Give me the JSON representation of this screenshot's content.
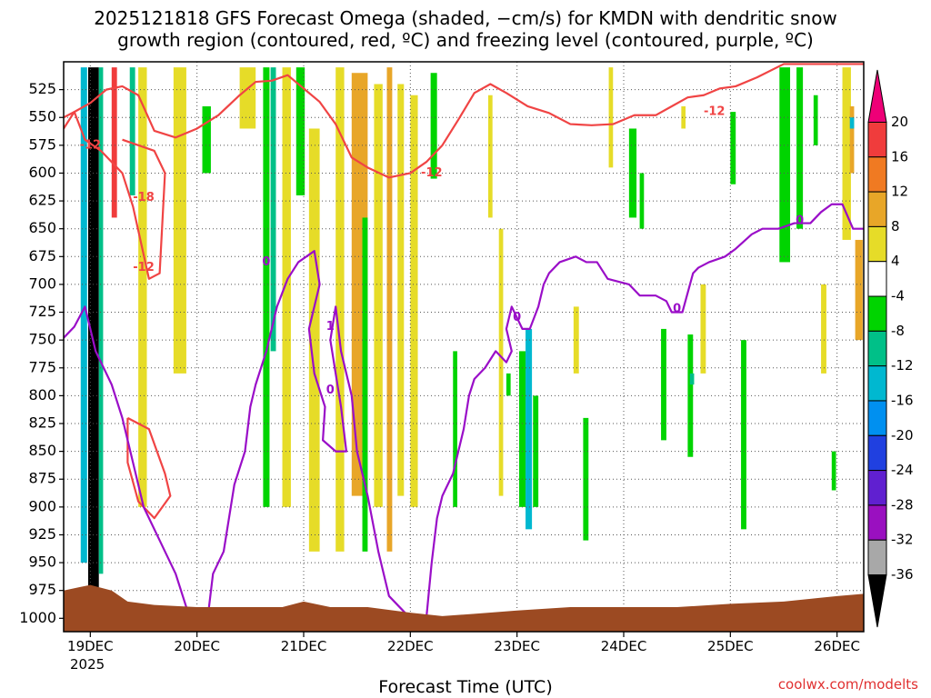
{
  "title_line1": "2025121818 GFS Forecast Omega (shaded, −cm/s) for KMDN with dendritic snow",
  "title_line2": "growth region (contoured, red, ºC) and freezing level (contoured, purple, ºC)",
  "xlabel": "Forecast Time (UTC)",
  "year_label": "2025",
  "credit": "coolwx.com/modelts",
  "colors": {
    "dgz": "#f04444",
    "freezing": "#9a0ec8",
    "terrain": "#9c4a22",
    "grid": "#555555"
  },
  "chart_data": {
    "type": "heatmap",
    "title": "2025121818 GFS Forecast Omega (shaded, −cm/s) for KMDN with dendritic snow growth region (contoured, red, ºC) and freezing level (contoured, purple, ºC)",
    "xlabel": "Forecast Time (UTC)",
    "ylabel": "",
    "y_axis": {
      "reversed": true,
      "range": [
        1012,
        500
      ],
      "ticks": [
        525,
        550,
        575,
        600,
        625,
        650,
        675,
        700,
        725,
        750,
        775,
        800,
        825,
        850,
        875,
        900,
        925,
        950,
        975,
        1000
      ]
    },
    "x_axis": {
      "ticks": [
        "19DEC",
        "20DEC",
        "21DEC",
        "22DEC",
        "23DEC",
        "24DEC",
        "25DEC",
        "26DEC"
      ],
      "range": [
        -0.25,
        7.25
      ],
      "year": "2025"
    },
    "grid": true,
    "colorbar": {
      "labels": [
        "20",
        "16",
        "12",
        "8",
        "4",
        "-4",
        "-8",
        "-12",
        "-16",
        "-20",
        "-24",
        "-28",
        "-32",
        "-36"
      ],
      "bins": [
        {
          "range": [
            20,
            99
          ],
          "color": "#ee0077"
        },
        {
          "range": [
            16,
            20
          ],
          "color": "#f03c3c"
        },
        {
          "range": [
            12,
            16
          ],
          "color": "#f07a22"
        },
        {
          "range": [
            8,
            12
          ],
          "color": "#e8a628"
        },
        {
          "range": [
            4,
            8
          ],
          "color": "#e6dc28"
        },
        {
          "range": [
            -4,
            4
          ],
          "color": "#ffffff"
        },
        {
          "range": [
            -8,
            -4
          ],
          "color": "#00d400"
        },
        {
          "range": [
            -12,
            -8
          ],
          "color": "#00c088"
        },
        {
          "range": [
            -16,
            -12
          ],
          "color": "#00b8d0"
        },
        {
          "range": [
            -20,
            -16
          ],
          "color": "#0090f0"
        },
        {
          "range": [
            -24,
            -20
          ],
          "color": "#2040e0"
        },
        {
          "range": [
            -28,
            -24
          ],
          "color": "#6020d0"
        },
        {
          "range": [
            -32,
            -28
          ],
          "color": "#9a10c0"
        },
        {
          "range": [
            -36,
            -32
          ],
          "color": "#a8a8a8"
        },
        {
          "range": [
            -99,
            -36
          ],
          "color": "#000000"
        }
      ]
    },
    "omega_patches": [
      {
        "t": -0.02,
        "dt": 0.1,
        "p1": 505,
        "p2": 985,
        "v": -40
      },
      {
        "t": -0.09,
        "dt": 0.06,
        "p1": 505,
        "p2": 950,
        "v": -14
      },
      {
        "t": 0.08,
        "dt": 0.04,
        "p1": 505,
        "p2": 960,
        "v": -10
      },
      {
        "t": 0.2,
        "dt": 0.05,
        "p1": 505,
        "p2": 640,
        "v": 18
      },
      {
        "t": 0.37,
        "dt": 0.05,
        "p1": 505,
        "p2": 620,
        "v": -12
      },
      {
        "t": 0.45,
        "dt": 0.08,
        "p1": 505,
        "p2": 900,
        "v": 6
      },
      {
        "t": 0.78,
        "dt": 0.12,
        "p1": 505,
        "p2": 780,
        "v": 6
      },
      {
        "t": 1.05,
        "dt": 0.08,
        "p1": 540,
        "p2": 600,
        "v": -6
      },
      {
        "t": 1.4,
        "dt": 0.15,
        "p1": 505,
        "p2": 560,
        "v": 5
      },
      {
        "t": 1.62,
        "dt": 0.06,
        "p1": 505,
        "p2": 900,
        "v": -6
      },
      {
        "t": 1.69,
        "dt": 0.05,
        "p1": 505,
        "p2": 760,
        "v": -10
      },
      {
        "t": 1.8,
        "dt": 0.08,
        "p1": 505,
        "p2": 900,
        "v": 5
      },
      {
        "t": 1.93,
        "dt": 0.08,
        "p1": 505,
        "p2": 620,
        "v": -6
      },
      {
        "t": 2.05,
        "dt": 0.1,
        "p1": 560,
        "p2": 940,
        "v": 5
      },
      {
        "t": 2.3,
        "dt": 0.08,
        "p1": 505,
        "p2": 940,
        "v": 5
      },
      {
        "t": 2.45,
        "dt": 0.15,
        "p1": 510,
        "p2": 890,
        "v": 8
      },
      {
        "t": 2.66,
        "dt": 0.08,
        "p1": 520,
        "p2": 900,
        "v": 5
      },
      {
        "t": 2.78,
        "dt": 0.05,
        "p1": 505,
        "p2": 940,
        "v": 9
      },
      {
        "t": 2.88,
        "dt": 0.06,
        "p1": 520,
        "p2": 890,
        "v": 6
      },
      {
        "t": 2.55,
        "dt": 0.05,
        "p1": 640,
        "p2": 940,
        "v": -6
      },
      {
        "t": 3.0,
        "dt": 0.07,
        "p1": 530,
        "p2": 900,
        "v": 5
      },
      {
        "t": 3.19,
        "dt": 0.06,
        "p1": 510,
        "p2": 605,
        "v": -6
      },
      {
        "t": 3.4,
        "dt": 0.04,
        "p1": 760,
        "p2": 900,
        "v": -6
      },
      {
        "t": 3.73,
        "dt": 0.04,
        "p1": 530,
        "p2": 640,
        "v": 5
      },
      {
        "t": 3.83,
        "dt": 0.04,
        "p1": 650,
        "p2": 890,
        "v": 5
      },
      {
        "t": 3.9,
        "dt": 0.04,
        "p1": 780,
        "p2": 800,
        "v": -6
      },
      {
        "t": 4.02,
        "dt": 0.06,
        "p1": 760,
        "p2": 900,
        "v": -8
      },
      {
        "t": 4.08,
        "dt": 0.06,
        "p1": 740,
        "p2": 920,
        "v": -13
      },
      {
        "t": 4.15,
        "dt": 0.05,
        "p1": 800,
        "p2": 900,
        "v": -6
      },
      {
        "t": 4.53,
        "dt": 0.05,
        "p1": 720,
        "p2": 780,
        "v": 5
      },
      {
        "t": 4.62,
        "dt": 0.05,
        "p1": 820,
        "p2": 930,
        "v": -6
      },
      {
        "t": 4.86,
        "dt": 0.04,
        "p1": 505,
        "p2": 595,
        "v": 5
      },
      {
        "t": 5.05,
        "dt": 0.07,
        "p1": 560,
        "p2": 640,
        "v": -6
      },
      {
        "t": 5.15,
        "dt": 0.04,
        "p1": 600,
        "p2": 650,
        "v": -6
      },
      {
        "t": 5.35,
        "dt": 0.05,
        "p1": 740,
        "p2": 840,
        "v": -6
      },
      {
        "t": 5.54,
        "dt": 0.04,
        "p1": 540,
        "p2": 560,
        "v": 6
      },
      {
        "t": 5.6,
        "dt": 0.05,
        "p1": 745,
        "p2": 855,
        "v": -7
      },
      {
        "t": 5.62,
        "dt": 0.04,
        "p1": 780,
        "p2": 790,
        "v": -12
      },
      {
        "t": 5.72,
        "dt": 0.05,
        "p1": 700,
        "p2": 780,
        "v": 5
      },
      {
        "t": 6.0,
        "dt": 0.05,
        "p1": 545,
        "p2": 610,
        "v": -6
      },
      {
        "t": 6.1,
        "dt": 0.05,
        "p1": 750,
        "p2": 920,
        "v": -6
      },
      {
        "t": 6.46,
        "dt": 0.1,
        "p1": 505,
        "p2": 680,
        "v": -6
      },
      {
        "t": 6.62,
        "dt": 0.06,
        "p1": 505,
        "p2": 650,
        "v": -6
      },
      {
        "t": 6.78,
        "dt": 0.04,
        "p1": 530,
        "p2": 575,
        "v": -6
      },
      {
        "t": 6.85,
        "dt": 0.05,
        "p1": 700,
        "p2": 780,
        "v": 5
      },
      {
        "t": 6.95,
        "dt": 0.04,
        "p1": 850,
        "p2": 885,
        "v": -6
      },
      {
        "t": 7.05,
        "dt": 0.08,
        "p1": 505,
        "p2": 660,
        "v": 6
      },
      {
        "t": 7.12,
        "dt": 0.04,
        "p1": 540,
        "p2": 600,
        "v": 9
      },
      {
        "t": 7.12,
        "dt": 0.04,
        "p1": 550,
        "p2": 560,
        "v": -13
      },
      {
        "t": 7.17,
        "dt": 0.07,
        "p1": 660,
        "p2": 750,
        "v": 9
      }
    ],
    "dgz_upper_isotherm_c": -12,
    "dgz_upper_isotherm": [
      [
        -0.25,
        560
      ],
      [
        -0.15,
        545
      ],
      [
        0.0,
        537
      ],
      [
        0.15,
        525
      ],
      [
        0.3,
        522
      ],
      [
        0.45,
        530
      ],
      [
        0.6,
        562
      ],
      [
        0.8,
        568
      ],
      [
        1.0,
        560
      ],
      [
        1.2,
        548
      ],
      [
        1.4,
        530
      ],
      [
        1.55,
        518
      ],
      [
        1.7,
        517
      ],
      [
        1.85,
        512
      ],
      [
        2.0,
        524
      ],
      [
        2.15,
        536
      ],
      [
        2.3,
        556
      ],
      [
        2.45,
        586
      ],
      [
        2.6,
        595
      ],
      [
        2.8,
        604
      ],
      [
        3.0,
        600
      ],
      [
        3.15,
        590
      ],
      [
        3.3,
        575
      ],
      [
        3.45,
        552
      ],
      [
        3.6,
        528
      ],
      [
        3.75,
        520
      ],
      [
        3.9,
        528
      ],
      [
        4.1,
        540
      ],
      [
        4.3,
        546
      ],
      [
        4.5,
        556
      ],
      [
        4.7,
        557
      ],
      [
        4.9,
        556
      ],
      [
        5.1,
        548
      ],
      [
        5.3,
        548
      ],
      [
        5.45,
        540
      ],
      [
        5.6,
        532
      ],
      [
        5.75,
        530
      ],
      [
        5.9,
        524
      ],
      [
        6.05,
        522
      ],
      [
        6.25,
        514
      ],
      [
        6.5,
        502
      ],
      [
        7.25,
        502
      ]
    ],
    "dgz_lower_isotherm_c": -18,
    "dgz_lower_isotherm": [
      [
        -0.25,
        550
      ],
      [
        -0.15,
        545
      ],
      [
        -0.05,
        570
      ],
      [
        0.1,
        580
      ],
      [
        0.3,
        600
      ],
      [
        0.4,
        630
      ],
      [
        0.55,
        695
      ],
      [
        0.65,
        690
      ],
      [
        0.7,
        600
      ],
      [
        0.6,
        580
      ],
      [
        0.45,
        575
      ],
      [
        0.3,
        570
      ]
    ],
    "dgz_closed_contour": [
      [
        0.35,
        820
      ],
      [
        0.55,
        830
      ],
      [
        0.7,
        870
      ],
      [
        0.75,
        890
      ],
      [
        0.6,
        910
      ],
      [
        0.45,
        895
      ],
      [
        0.35,
        860
      ],
      [
        0.35,
        820
      ]
    ],
    "freezing_level_0c": [
      [
        -0.25,
        748
      ],
      [
        -0.15,
        738
      ],
      [
        -0.05,
        720
      ],
      [
        0.0,
        740
      ],
      [
        0.05,
        760
      ],
      [
        0.2,
        790
      ],
      [
        0.3,
        820
      ],
      [
        0.4,
        860
      ],
      [
        0.5,
        900
      ],
      [
        0.65,
        930
      ],
      [
        0.8,
        960
      ],
      [
        0.9,
        990
      ],
      [
        1.05,
        1000
      ]
    ],
    "freezing_level_0c_b": [
      [
        1.1,
        1000
      ],
      [
        1.15,
        960
      ],
      [
        1.25,
        940
      ],
      [
        1.35,
        880
      ],
      [
        1.45,
        850
      ],
      [
        1.5,
        810
      ],
      [
        1.55,
        790
      ],
      [
        1.65,
        760
      ],
      [
        1.75,
        720
      ],
      [
        1.85,
        695
      ],
      [
        1.95,
        680
      ],
      [
        2.1,
        670
      ],
      [
        2.15,
        700
      ],
      [
        2.05,
        740
      ],
      [
        2.1,
        780
      ],
      [
        2.2,
        810
      ],
      [
        2.18,
        840
      ],
      [
        2.3,
        850
      ],
      [
        2.4,
        850
      ],
      [
        2.35,
        810
      ],
      [
        2.3,
        780
      ],
      [
        2.25,
        750
      ],
      [
        2.3,
        720
      ],
      [
        2.35,
        760
      ],
      [
        2.45,
        800
      ],
      [
        2.5,
        850
      ],
      [
        2.6,
        890
      ],
      [
        2.7,
        940
      ],
      [
        2.8,
        980
      ],
      [
        2.9,
        990
      ],
      [
        3.0,
        1000
      ]
    ],
    "freezing_level_0c_c": [
      [
        3.15,
        1000
      ],
      [
        3.2,
        950
      ],
      [
        3.25,
        910
      ],
      [
        3.3,
        890
      ],
      [
        3.4,
        870
      ],
      [
        3.5,
        830
      ],
      [
        3.55,
        800
      ],
      [
        3.6,
        785
      ],
      [
        3.7,
        775
      ],
      [
        3.8,
        760
      ],
      [
        3.9,
        770
      ],
      [
        3.95,
        760
      ],
      [
        3.9,
        740
      ],
      [
        3.95,
        720
      ],
      [
        4.05,
        740
      ],
      [
        4.12,
        740
      ],
      [
        4.2,
        720
      ],
      [
        4.25,
        700
      ],
      [
        4.3,
        690
      ],
      [
        4.4,
        680
      ],
      [
        4.55,
        675
      ],
      [
        4.65,
        680
      ],
      [
        4.75,
        680
      ],
      [
        4.85,
        695
      ],
      [
        5.05,
        700
      ],
      [
        5.15,
        710
      ],
      [
        5.3,
        710
      ],
      [
        5.4,
        715
      ],
      [
        5.45,
        725
      ],
      [
        5.55,
        725
      ],
      [
        5.65,
        690
      ],
      [
        5.7,
        685
      ],
      [
        5.8,
        680
      ],
      [
        5.95,
        675
      ],
      [
        6.05,
        668
      ],
      [
        6.2,
        655
      ],
      [
        6.3,
        650
      ],
      [
        6.45,
        650
      ],
      [
        6.6,
        645
      ],
      [
        6.75,
        645
      ],
      [
        6.85,
        635
      ],
      [
        6.95,
        628
      ],
      [
        7.05,
        628
      ],
      [
        7.15,
        650
      ],
      [
        7.25,
        650
      ]
    ],
    "terrain_surface_hpa": [
      [
        -0.25,
        975
      ],
      [
        -0.1,
        972
      ],
      [
        0.0,
        970
      ],
      [
        0.2,
        975
      ],
      [
        0.35,
        985
      ],
      [
        0.6,
        988
      ],
      [
        1.0,
        990
      ],
      [
        1.4,
        990
      ],
      [
        1.8,
        990
      ],
      [
        2.0,
        985
      ],
      [
        2.25,
        990
      ],
      [
        2.6,
        990
      ],
      [
        3.0,
        995
      ],
      [
        3.3,
        998
      ],
      [
        3.6,
        996
      ],
      [
        4.0,
        993
      ],
      [
        4.5,
        990
      ],
      [
        5.0,
        990
      ],
      [
        5.5,
        990
      ],
      [
        6.0,
        987
      ],
      [
        6.5,
        985
      ],
      [
        6.8,
        982
      ],
      [
        7.0,
        980
      ],
      [
        7.25,
        978
      ]
    ],
    "contour_labels": [
      {
        "t": 0.0,
        "p": 575,
        "text": "-12",
        "series": "dgz"
      },
      {
        "t": 0.5,
        "p": 622,
        "text": "-18",
        "series": "dgz"
      },
      {
        "t": 0.5,
        "p": 685,
        "text": "-12",
        "series": "dgz"
      },
      {
        "t": 3.2,
        "p": 600,
        "text": "-12",
        "series": "dgz"
      },
      {
        "t": 5.85,
        "p": 545,
        "text": "-12",
        "series": "dgz"
      },
      {
        "t": 1.65,
        "p": 680,
        "text": "0",
        "series": "freezing"
      },
      {
        "t": 2.25,
        "p": 738,
        "text": "1",
        "series": "freezing"
      },
      {
        "t": 2.25,
        "p": 795,
        "text": "0",
        "series": "freezing"
      },
      {
        "t": 4.0,
        "p": 730,
        "text": "0",
        "series": "freezing"
      },
      {
        "t": 5.5,
        "p": 722,
        "text": "0",
        "series": "freezing"
      },
      {
        "t": 6.65,
        "p": 643,
        "text": "0",
        "series": "freezing"
      }
    ]
  }
}
